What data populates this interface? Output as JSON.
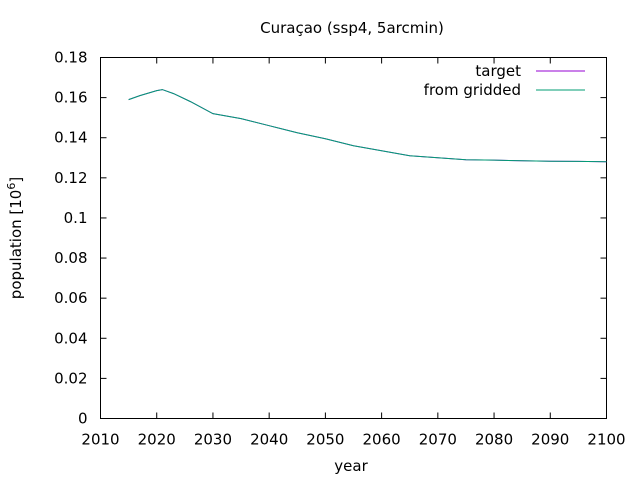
{
  "chart_data": {
    "type": "line",
    "title": "Curaçao (ssp4, 5arcmin)",
    "xlabel": "year",
    "ylabel": "population [10",
    "ylabel_sup": "6",
    "ylabel_end": "]",
    "xlim": [
      2010,
      2100
    ],
    "ylim": [
      0,
      0.18
    ],
    "xticks": [
      "2010",
      "2020",
      "2030",
      "2040",
      "2050",
      "2060",
      "2070",
      "2080",
      "2090",
      "2100"
    ],
    "yticks": [
      "0",
      "0.02",
      "0.04",
      "0.06",
      "0.08",
      "0.1",
      "0.12",
      "0.14",
      "0.16",
      "0.18"
    ],
    "grid": false,
    "legend_position": "top-right",
    "series": [
      {
        "name": "target",
        "color": "#9400d3",
        "x": [
          2015,
          2017,
          2020,
          2021,
          2023,
          2026,
          2030,
          2035,
          2040,
          2045,
          2050,
          2055,
          2060,
          2065,
          2070,
          2075,
          2080,
          2085,
          2090,
          2095,
          2100
        ],
        "y": [
          0.159,
          0.161,
          0.1635,
          0.164,
          0.162,
          0.158,
          0.152,
          0.1495,
          0.146,
          0.1425,
          0.1395,
          0.136,
          0.1335,
          0.131,
          0.13,
          0.129,
          0.1288,
          0.1285,
          0.1283,
          0.1282,
          0.128
        ]
      },
      {
        "name": "from gridded",
        "color": "#009e73",
        "x": [
          2015,
          2017,
          2020,
          2021,
          2023,
          2026,
          2030,
          2035,
          2040,
          2045,
          2050,
          2055,
          2060,
          2065,
          2070,
          2075,
          2080,
          2085,
          2090,
          2095,
          2100
        ],
        "y": [
          0.159,
          0.161,
          0.1635,
          0.164,
          0.162,
          0.158,
          0.152,
          0.1495,
          0.146,
          0.1425,
          0.1395,
          0.136,
          0.1335,
          0.131,
          0.13,
          0.129,
          0.1288,
          0.1285,
          0.1283,
          0.1282,
          0.128
        ]
      }
    ]
  }
}
